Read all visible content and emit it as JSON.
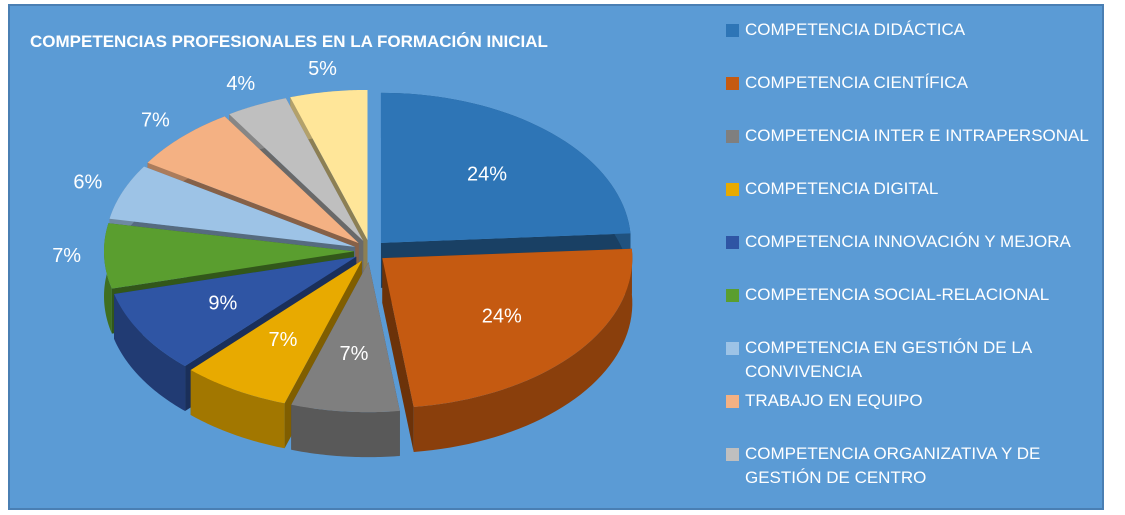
{
  "chart_data": {
    "type": "pie",
    "title": "COMPETENCIAS PROFESIONALES EN LA FORMACIÓN INICIAL",
    "categories": [
      "COMPETENCIA DIDÁCTICA",
      "COMPETENCIA CIENTÍFICA",
      "COMPETENCIA INTER E INTRAPERSONAL",
      "COMPETENCIA DIGITAL",
      "COMPETENCIA INNOVACIÓN Y MEJORA",
      "COMPETENCIA SOCIAL-RELACIONAL",
      "COMPETENCIA EN GESTIÓN DE LA CONVIVENCIA",
      "TRABAJO EN EQUIPO",
      "COMPETENCIA ORGANIZATIVA Y DE GESTIÓN DE CENTRO",
      null
    ],
    "values": [
      24,
      24,
      7,
      7,
      9,
      7,
      6,
      7,
      4,
      5
    ],
    "value_labels": [
      "24%",
      "24%",
      "7%",
      "7%",
      "9%",
      "7%",
      "6%",
      "7%",
      "4%",
      "5%"
    ],
    "colors": [
      "#2e75b6",
      "#c55a11",
      "#7f7f7f",
      "#e8aa00",
      "#2f55a4",
      "#5a9e2f",
      "#9dc3e6",
      "#f4b183",
      "#bfbfbf",
      "#ffe699"
    ]
  }
}
